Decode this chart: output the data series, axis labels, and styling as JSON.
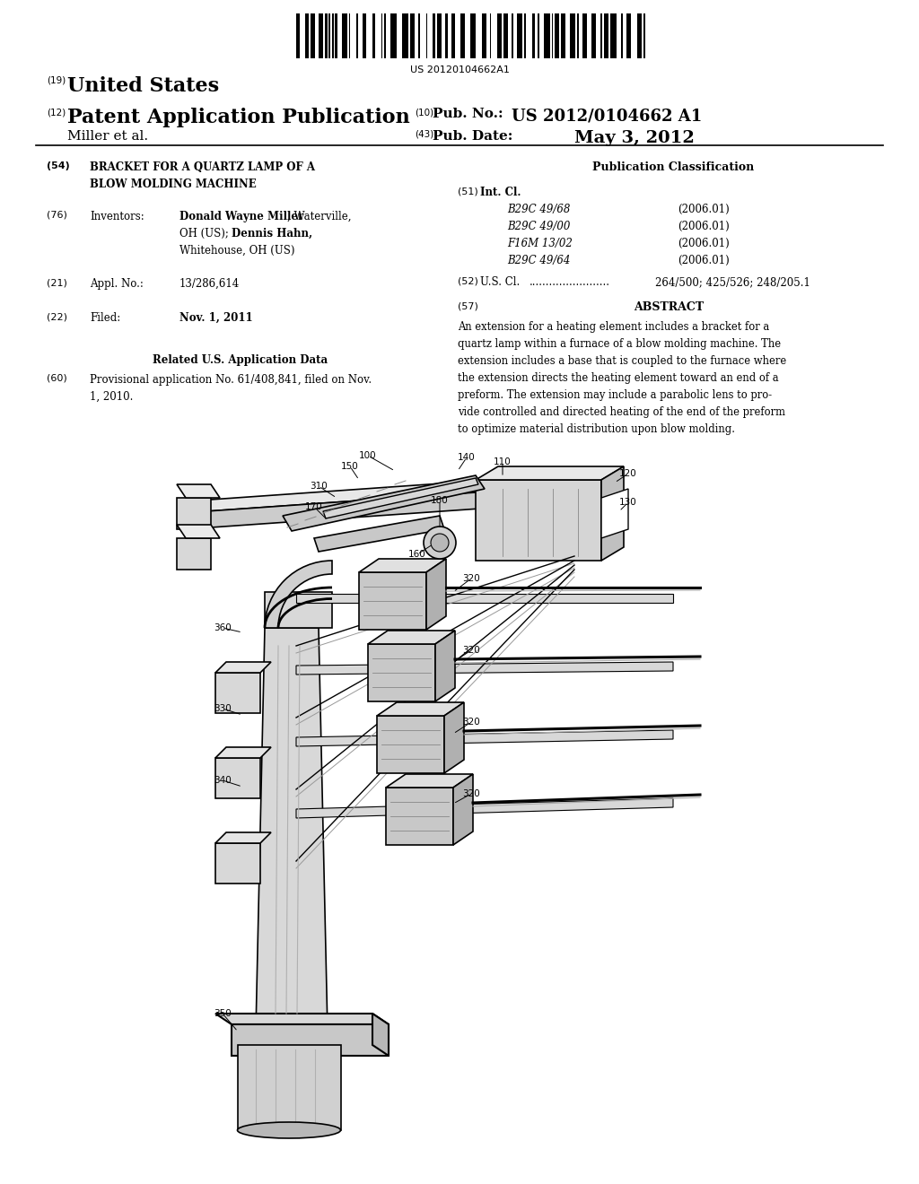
{
  "background_color": "#ffffff",
  "barcode_text": "US 20120104662A1",
  "page_width": 10.24,
  "page_height": 13.2,
  "header": {
    "tag19": "(19)",
    "country": "United States",
    "tag12": "(12)",
    "pub_type": "Patent Application Publication",
    "tag10": "(10)",
    "pub_no_label": "Pub. No.:",
    "pub_no": "US 2012/0104662 A1",
    "inventors": "Miller et al.",
    "tag43": "(43)",
    "pub_date_label": "Pub. Date:",
    "pub_date": "May 3, 2012"
  },
  "left_col": {
    "tag54": "(54)",
    "title_line1": "BRACKET FOR A QUARTZ LAMP OF A",
    "title_line2": "BLOW MOLDING MACHINE",
    "tag76": "(76)",
    "inventors_label": "Inventors:",
    "inv_name1": "Donald Wayne Miller",
    "inv_loc1": ", Waterville,",
    "inv_loc2": "OH (US);",
    "inv_name2": "Dennis Hahn,",
    "inv_loc3": "Whitehouse, OH (US)",
    "tag21": "(21)",
    "appl_label": "Appl. No.:",
    "appl_no": "13/286,614",
    "tag22": "(22)",
    "filed_label": "Filed:",
    "filed_date": "Nov. 1, 2011",
    "related_title": "Related U.S. Application Data",
    "tag60": "(60)",
    "prov_line1": "Provisional application No. 61/408,841, filed on Nov.",
    "prov_line2": "1, 2010."
  },
  "right_col": {
    "pub_class_title": "Publication Classification",
    "tag51": "(51)",
    "intcl_label": "Int. Cl.",
    "cls": [
      [
        "B29C 49/68",
        "(2006.01)"
      ],
      [
        "B29C 49/00",
        "(2006.01)"
      ],
      [
        "F16M 13/02",
        "(2006.01)"
      ],
      [
        "B29C 49/64",
        "(2006.01)"
      ]
    ],
    "tag52": "(52)",
    "uscl_label": "U.S. Cl.",
    "uscl_dots": "........................",
    "uscl_values": "264/500; 425/526; 248/205.1",
    "tag57": "(57)",
    "abstract_title": "ABSTRACT",
    "abstract_lines": [
      "An extension for a heating element includes a bracket for a",
      "quartz lamp within a furnace of a blow molding machine. The",
      "extension includes a base that is coupled to the furnace where",
      "the extension directs the heating element toward an end of a",
      "preform. The extension may include a parabolic lens to pro-",
      "vide controlled and directed heating of the end of the preform",
      "to optimize material distribution upon blow molding."
    ]
  }
}
